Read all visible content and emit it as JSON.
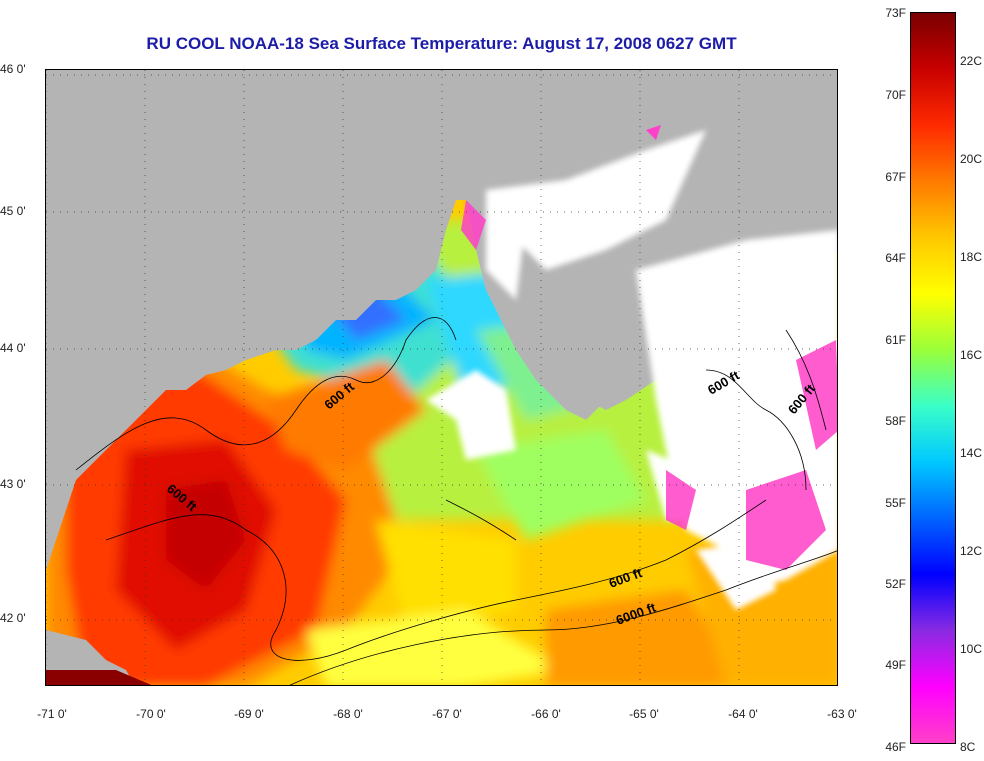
{
  "title": "RU COOL  NOAA-18  Sea Surface Temperature:  August 17, 2008 0627 GMT",
  "map": {
    "lat_labels": [
      "46 0'",
      "45 0'",
      "44 0'",
      "43 0'",
      "42 0'"
    ],
    "lon_labels": [
      "-71 0'",
      "-70 0'",
      "-69 0'",
      "-68 0'",
      "-67 0'",
      "-66 0'",
      "-65 0'",
      "-64 0'",
      "-63 0'"
    ],
    "contour_labels": [
      "600 ft",
      "600 ft",
      "600 ft",
      "600 ft",
      "600 ft",
      "6000 ft"
    ],
    "land_color": "#b4b4b4",
    "cloud_color": "#ffffff"
  },
  "colorbar": {
    "fahrenheit_labels": [
      "73F",
      "70F",
      "67F",
      "64F",
      "61F",
      "58F",
      "55F",
      "52F",
      "49F",
      "46F"
    ],
    "celsius_labels": [
      "22C",
      "20C",
      "18C",
      "16C",
      "14C",
      "12C",
      "10C",
      "8C"
    ],
    "colors": [
      "#7a0000",
      "#c80000",
      "#ff2a00",
      "#ff7a00",
      "#ffc800",
      "#ffff00",
      "#9aff3a",
      "#3affc8",
      "#00c8ff",
      "#0064ff",
      "#0000ff",
      "#8a2be2",
      "#ff00ff",
      "#ff40c8"
    ]
  }
}
